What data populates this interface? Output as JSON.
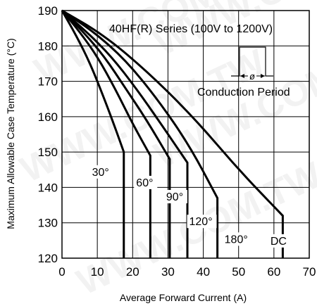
{
  "chart_data": {
    "type": "line",
    "title": "",
    "annotation": "40HF(R) Series (100V to 1200V)",
    "inset_label": "Conduction Period",
    "inset_symbol": "ø",
    "xlabel": "Average Forward Current (A)",
    "ylabel": "Maximum Allowable Case Temperature (°C)",
    "xlim": [
      0,
      70
    ],
    "ylim": [
      120,
      190
    ],
    "xticks": [
      0,
      10,
      20,
      30,
      40,
      50,
      60,
      70
    ],
    "yticks": [
      120,
      130,
      140,
      150,
      160,
      170,
      180,
      190
    ],
    "grid": true,
    "watermark": "WWW.COM.TW",
    "series": [
      {
        "name": "30°",
        "x": [
          0,
          4,
          8,
          12,
          15,
          17.5,
          17.5
        ],
        "y": [
          190,
          183,
          175,
          165,
          157,
          150,
          120
        ]
      },
      {
        "name": "60°",
        "x": [
          0,
          5,
          10,
          15,
          20,
          25,
          25
        ],
        "y": [
          190,
          184,
          177,
          168,
          158,
          149,
          120
        ]
      },
      {
        "name": "90°",
        "x": [
          0,
          6,
          12,
          18,
          24,
          30.5,
          30.5
        ],
        "y": [
          190,
          184,
          177,
          168,
          159,
          148,
          120
        ]
      },
      {
        "name": "120°",
        "x": [
          0,
          7,
          14,
          21,
          28,
          35.5,
          35.5
        ],
        "y": [
          190,
          184,
          177,
          168,
          158,
          147,
          120
        ]
      },
      {
        "name": "180°",
        "x": [
          0,
          9,
          18,
          27,
          36,
          44,
          44
        ],
        "y": [
          190,
          184,
          176,
          165,
          152,
          137,
          120
        ]
      },
      {
        "name": "DC",
        "x": [
          0,
          12,
          25,
          38,
          50,
          62.5,
          62.5
        ],
        "y": [
          190,
          183,
          172,
          159,
          145,
          132,
          120
        ]
      }
    ],
    "label_positions": [
      {
        "text": "30°",
        "x": 8.5,
        "y": 143.3
      },
      {
        "text": "60°",
        "x": 21,
        "y": 140.3
      },
      {
        "text": "90°",
        "x": 29.5,
        "y": 136.3
      },
      {
        "text": "120°",
        "x": 36,
        "y": 129.3
      },
      {
        "text": "180°",
        "x": 46,
        "y": 124.3
      },
      {
        "text": "DC",
        "x": 59,
        "y": 123.8
      }
    ]
  }
}
